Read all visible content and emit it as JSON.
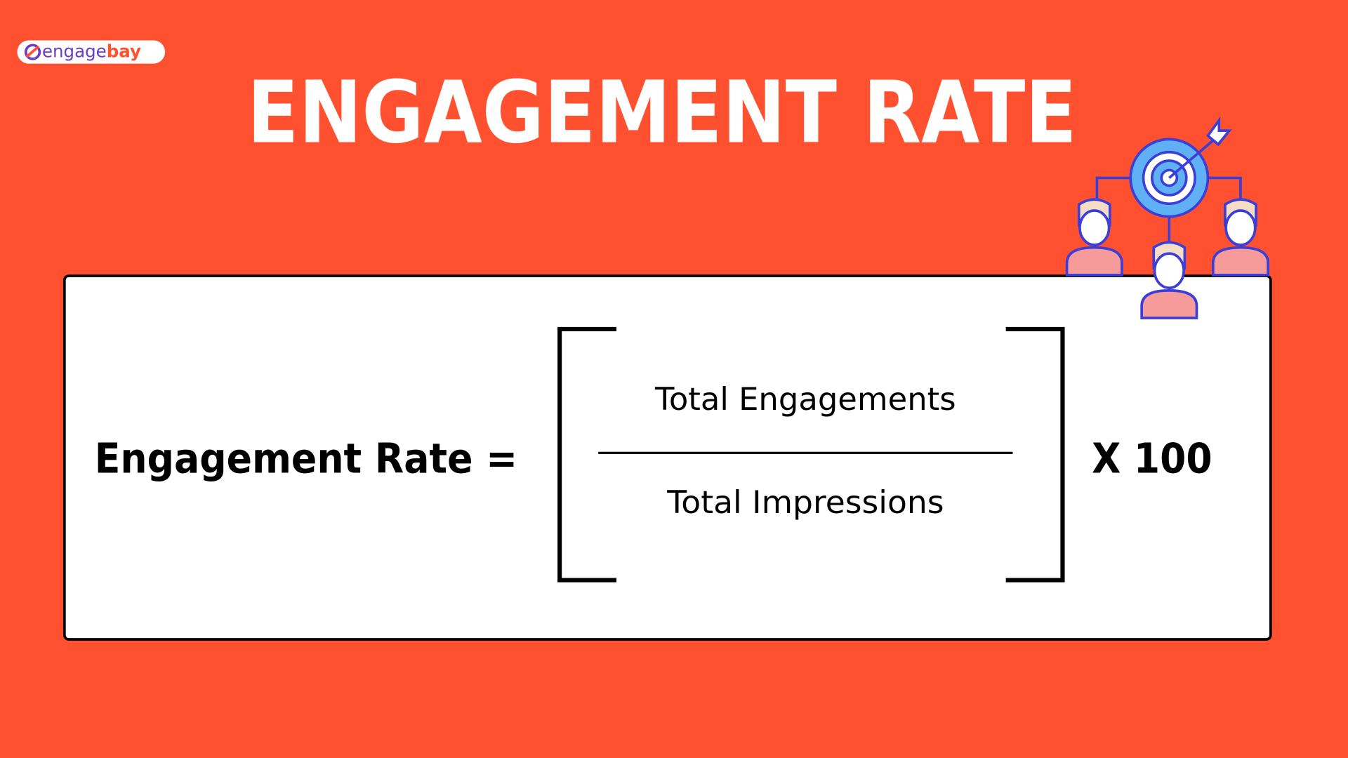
{
  "logo": {
    "main": "engage",
    "accent": "bay"
  },
  "title": "ENGAGEMENT RATE",
  "formula": {
    "left": "Engagement Rate =",
    "numerator": "Total Engagements",
    "denominator": "Total Impressions",
    "multiplier": "X 100"
  }
}
